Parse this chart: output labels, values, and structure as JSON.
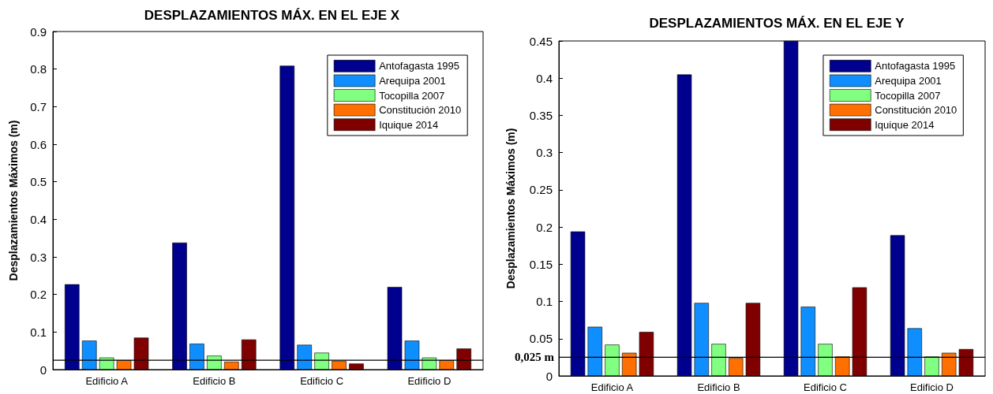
{
  "chart_data": [
    {
      "type": "bar",
      "title": "DESPLAZAMIENTOS MÁX. EN EL EJE X",
      "ylabel": "Desplazamientos Máximos (m)",
      "categories": [
        "Edificio A",
        "Edificio B",
        "Edificio C",
        "Edificio D"
      ],
      "series": [
        {
          "name": "Antofagasta 1995",
          "color": "#00008f",
          "values": [
            0.227,
            0.338,
            0.809,
            0.22
          ]
        },
        {
          "name": "Arequipa 2001",
          "color": "#0f8fff",
          "values": [
            0.077,
            0.069,
            0.066,
            0.077
          ]
        },
        {
          "name": "Tocopilla 2007",
          "color": "#80ff80",
          "values": [
            0.032,
            0.037,
            0.045,
            0.032
          ]
        },
        {
          "name": "Constitución 2010",
          "color": "#ff7000",
          "values": [
            0.025,
            0.021,
            0.023,
            0.025
          ]
        },
        {
          "name": "Iquique 2014",
          "color": "#800000",
          "values": [
            0.085,
            0.08,
            0.016,
            0.056
          ]
        }
      ],
      "ylim": [
        0,
        0.9
      ],
      "yticks": [
        0,
        0.1,
        0.2,
        0.3,
        0.4,
        0.5,
        0.6,
        0.7,
        0.8,
        0.9
      ],
      "ref_lines": [
        {
          "axis": "y",
          "value": 0.025,
          "label": null,
          "color": "#000000"
        }
      ],
      "grid": false,
      "legend": "top right"
    },
    {
      "type": "bar",
      "title": "DESPLAZAMIENTOS MÁX. EN EL EJE Y",
      "ylabel": "Desplazamientos Máximos (m)",
      "categories": [
        "Edificio A",
        "Edificio B",
        "Edificio C",
        "Edificio D"
      ],
      "series": [
        {
          "name": "Antofagasta 1995",
          "color": "#00008f",
          "values": [
            0.194,
            0.405,
            0.45,
            0.189
          ]
        },
        {
          "name": "Arequipa 2001",
          "color": "#0f8fff",
          "values": [
            0.066,
            0.098,
            0.093,
            0.064
          ]
        },
        {
          "name": "Tocopilla 2007",
          "color": "#80ff80",
          "values": [
            0.042,
            0.043,
            0.043,
            0.026
          ]
        },
        {
          "name": "Constitución 2010",
          "color": "#ff7000",
          "values": [
            0.031,
            0.024,
            0.026,
            0.031
          ]
        },
        {
          "name": "Iquique 2014",
          "color": "#800000",
          "values": [
            0.059,
            0.098,
            0.119,
            0.036
          ]
        }
      ],
      "ylim": [
        0,
        0.45
      ],
      "yticks": [
        0,
        0.05,
        0.1,
        0.15,
        0.2,
        0.25,
        0.3,
        0.35,
        0.4,
        0.45
      ],
      "ref_lines": [
        {
          "axis": "y",
          "value": 0.025,
          "label": "0,025 m",
          "color": "#000000"
        }
      ],
      "grid": false,
      "legend": "top right"
    }
  ]
}
